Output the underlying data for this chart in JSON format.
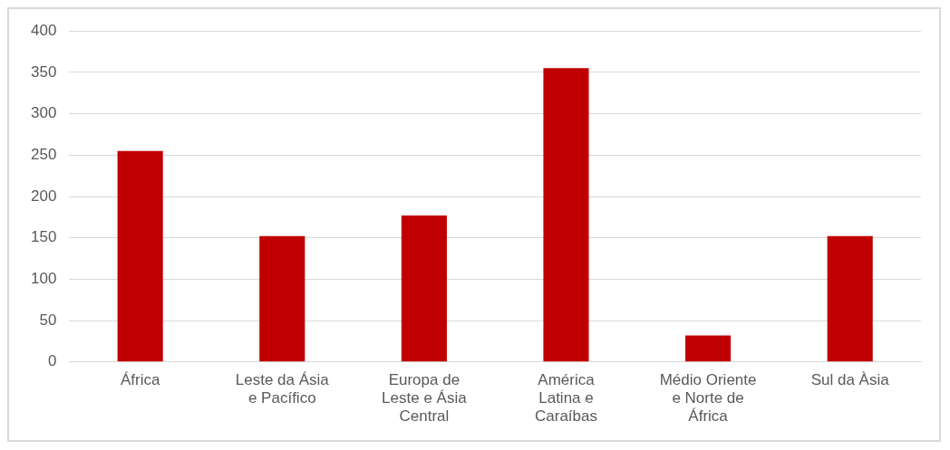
{
  "chart_data": {
    "type": "bar",
    "categories": [
      "África",
      "Leste da Ásia e Pacífico",
      "Europa de Leste e Ásia Central",
      "América Latina e Caraíbas",
      "Médio Oriente e Norte de África",
      "Sul da Àsia"
    ],
    "values": [
      255,
      152,
      177,
      355,
      32,
      152
    ],
    "color": "#c00000",
    "ylim": [
      0,
      400
    ],
    "yticks": [
      0,
      50,
      100,
      150,
      200,
      250,
      300,
      350,
      400
    ],
    "grid": "y"
  }
}
